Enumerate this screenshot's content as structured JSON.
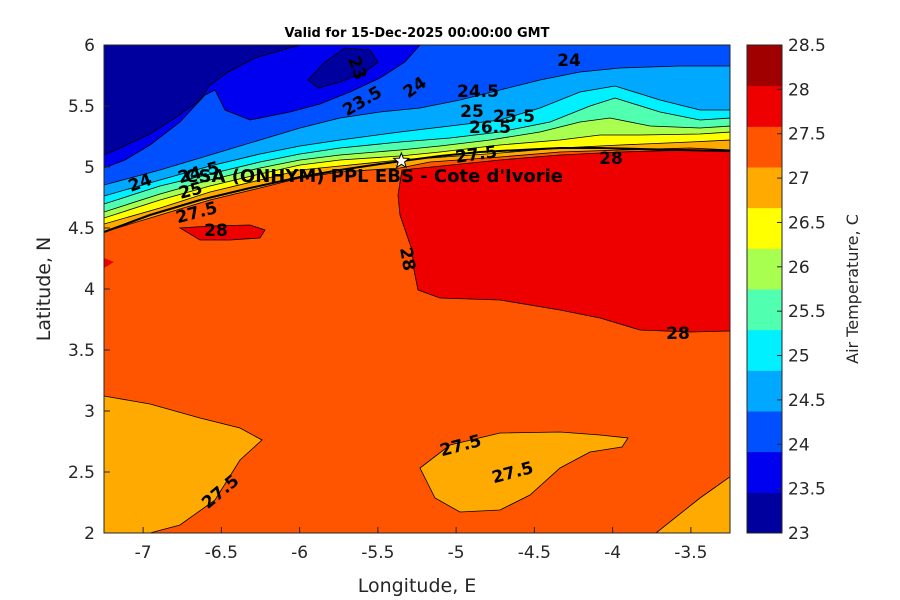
{
  "chart_data": {
    "type": "heatmap",
    "title": "Valid for 15-Dec-2025 00:00:00 GMT",
    "xlabel": "Longitude, E",
    "ylabel": "Latitude, N",
    "xlim": [
      -7.25,
      -3.25
    ],
    "ylim": [
      2,
      6
    ],
    "xticks": [
      "-7",
      "-6.5",
      "-6",
      "-5.5",
      "-5",
      "-4.5",
      "-4",
      "-3.5"
    ],
    "yticks": [
      "2",
      "2.5",
      "3",
      "3.5",
      "4",
      "4.5",
      "5",
      "5.5",
      "6"
    ],
    "colorbar": {
      "label": "Air Temperature, C",
      "ticks": [
        "23",
        "23.5",
        "24",
        "24.5",
        "25",
        "25.5",
        "26",
        "26.5",
        "27",
        "27.5",
        "28",
        "28.5"
      ],
      "levels": [
        23,
        23.5,
        24,
        24.5,
        25,
        25.5,
        26,
        26.5,
        27,
        27.5,
        28,
        28.5
      ],
      "colors": [
        "#00009e",
        "#0000f0",
        "#0050ff",
        "#00a8ff",
        "#00f0ff",
        "#50ffb0",
        "#a8ff50",
        "#ffff00",
        "#ffaa00",
        "#ff5500",
        "#ee0000",
        "#a00000"
      ]
    },
    "site": {
      "label": "CSA (ONHYM) PPL EBS  - Cote d'Ivorie",
      "lon": -5.35,
      "lat": 5.05
    },
    "contour_labels": [
      "23",
      "24",
      "23.5",
      "24",
      "24.5",
      "25",
      "25.5",
      "26.5",
      "27.5",
      "28",
      "24",
      "24.5",
      "25",
      "27.5",
      "28",
      "28",
      "28",
      "27.5",
      "27.5",
      "27.5"
    ]
  }
}
